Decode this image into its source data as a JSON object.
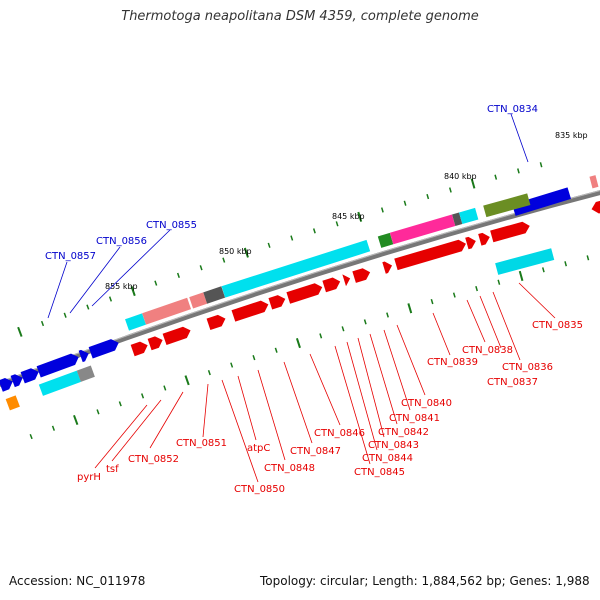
{
  "title": "Thermotoga neapolitana DSM 4359, complete genome",
  "footer": {
    "accession": "Accession: NC_011978",
    "summary": "Topology: circular; Length: 1,884,562 bp; Genes: 1,988"
  },
  "colors": {
    "red": "#e60000",
    "cyan": "#00e0ee",
    "blue": "#0000dd",
    "pink": "#f08080",
    "magenta": "#ff2a9a",
    "olive": "#6b8e23",
    "gray": "#888888",
    "darkgray": "#555555",
    "green": "#228b22",
    "orange": "#ff8c00",
    "tick": "#1a7a1a"
  },
  "kbp_labels": [
    "835 kbp",
    "840 kbp",
    "845 kbp",
    "850 kbp",
    "855 kbp"
  ],
  "blue_genes": [
    "CTN_0834",
    "CTN_0855",
    "CTN_0856",
    "CTN_0857"
  ],
  "red_genes": [
    "CTN_0835",
    "CTN_0836",
    "CTN_0837",
    "CTN_0838",
    "CTN_0839",
    "CTN_0840",
    "CTN_0841",
    "CTN_0842",
    "CTN_0843",
    "CTN_0844",
    "CTN_0845",
    "CTN_0846",
    "CTN_0847",
    "CTN_0848",
    "atpC",
    "CTN_0850",
    "CTN_0851",
    "CTN_0852",
    "tsf",
    "pyrH"
  ]
}
